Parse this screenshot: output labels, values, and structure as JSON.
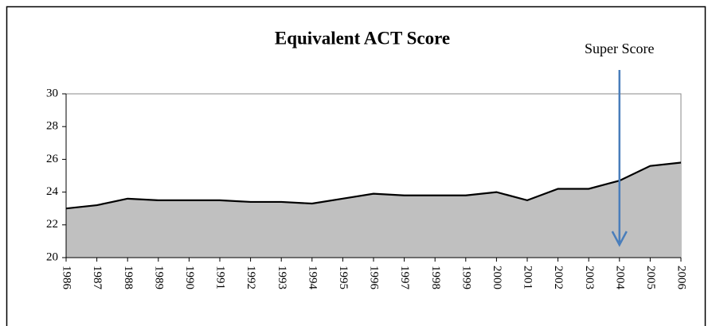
{
  "chart_data": {
    "type": "area",
    "title": "Equivalent ACT Score",
    "categories": [
      "1986",
      "1987",
      "1988",
      "1989",
      "1990",
      "1991",
      "1992",
      "1993",
      "1994",
      "1995",
      "1996",
      "1997",
      "1998",
      "1999",
      "2000",
      "2001",
      "2002",
      "2003",
      "2004",
      "2005",
      "2006"
    ],
    "values": [
      23.0,
      23.2,
      23.6,
      23.5,
      23.5,
      23.5,
      23.4,
      23.4,
      23.3,
      23.6,
      23.9,
      23.8,
      23.8,
      23.8,
      24.0,
      23.5,
      24.2,
      24.2,
      24.7,
      25.6,
      25.8
    ],
    "color": "#c0c0c0",
    "line_color": "#000000",
    "ylim": [
      20,
      30
    ],
    "yticks": [
      20,
      22,
      24,
      26,
      28,
      30
    ],
    "grid": false,
    "annotation": {
      "text": "Super Score",
      "category": "2004",
      "color": "#ff0000",
      "arrow_color": "#4a7ebb"
    }
  }
}
